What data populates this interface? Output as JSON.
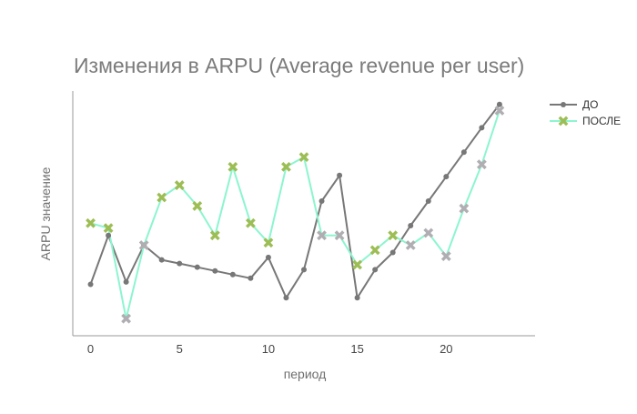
{
  "chart_data": {
    "type": "line",
    "title": "Изменения в ARPU (Average revenue per user)",
    "xlabel": "период",
    "ylabel": "ARPU значение",
    "x": [
      0,
      1,
      2,
      3,
      4,
      5,
      6,
      7,
      8,
      9,
      10,
      11,
      12,
      13,
      14,
      15,
      16,
      17,
      18,
      19,
      20,
      21,
      22,
      23
    ],
    "x_ticks": [
      0,
      5,
      10,
      15,
      20
    ],
    "x_tick_labels": [
      "0",
      "5",
      "10",
      "15",
      "20"
    ],
    "xlim": [
      -1,
      25
    ],
    "ylim": [
      0,
      100
    ],
    "grid": false,
    "legend_position": "top-right",
    "series": [
      {
        "name": "ДО",
        "color": "#777777",
        "marker": "circle",
        "values": [
          21,
          41,
          22,
          37,
          31,
          29.5,
          28,
          26.5,
          25,
          23.5,
          32,
          15.5,
          27,
          55,
          65.5,
          15.5,
          27,
          34,
          45,
          55,
          65,
          75,
          85,
          94.5
        ]
      },
      {
        "name": "ПОСЛЕ",
        "line_color": "#8cf5cf",
        "marker": "x",
        "marker_colors_by_point": [
          "#9dbd55",
          "#9dbd55",
          "#b0aeb2",
          "#b0aeb2",
          "#9dbd55",
          "#9dbd55",
          "#9dbd55",
          "#9dbd55",
          "#9dbd55",
          "#9dbd55",
          "#9dbd55",
          "#9dbd55",
          "#9dbd55",
          "#b0aeb2",
          "#b0aeb2",
          "#9dbd55",
          "#9dbd55",
          "#9dbd55",
          "#b0aeb2",
          "#b0aeb2",
          "#b0aeb2",
          "#b0aeb2",
          "#b0aeb2",
          "#b0aeb2"
        ],
        "values": [
          46,
          44,
          7,
          37,
          56.5,
          61.5,
          53,
          41,
          69,
          46,
          38,
          69,
          73,
          41,
          41,
          29,
          35,
          41,
          37,
          42,
          32.5,
          52,
          70,
          92
        ]
      }
    ]
  }
}
